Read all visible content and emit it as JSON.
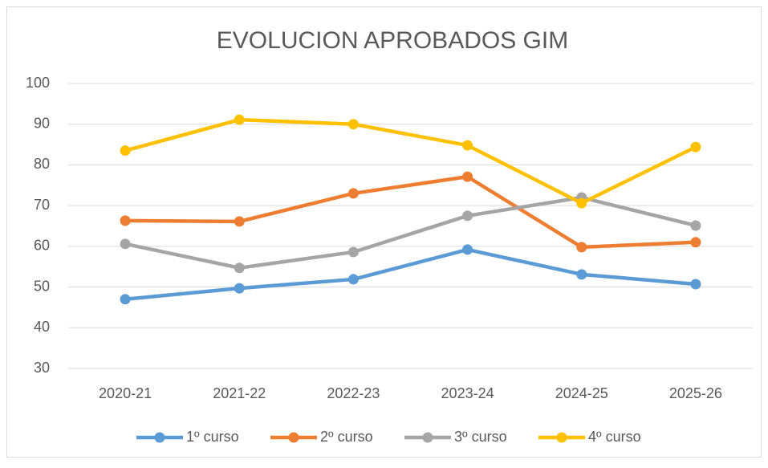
{
  "chart_data": {
    "type": "line",
    "title": "EVOLUCION APROBADOS GIM",
    "categories": [
      "2020-21",
      "2021-22",
      "2022-23",
      "2023-24",
      "2024-25",
      "2025-26"
    ],
    "series": [
      {
        "name": "1º curso",
        "color": "#5b9bd5",
        "values": [
          47.0,
          49.7,
          51.9,
          59.2,
          53.1,
          50.7
        ]
      },
      {
        "name": "2º curso",
        "color": "#ed7d31",
        "values": [
          66.3,
          66.1,
          73.0,
          77.1,
          59.8,
          61.0
        ]
      },
      {
        "name": "3º curso",
        "color": "#a5a5a5",
        "values": [
          60.6,
          54.7,
          58.6,
          67.5,
          72.0,
          65.1
        ]
      },
      {
        "name": "4º curso",
        "color": "#ffc000",
        "values": [
          83.5,
          91.1,
          90.0,
          84.8,
          70.6,
          84.4
        ]
      }
    ],
    "ylim": [
      30,
      100
    ],
    "yticks": [
      30,
      40,
      50,
      60,
      70,
      80,
      90,
      100
    ],
    "grid": true,
    "legend": "bottom"
  }
}
